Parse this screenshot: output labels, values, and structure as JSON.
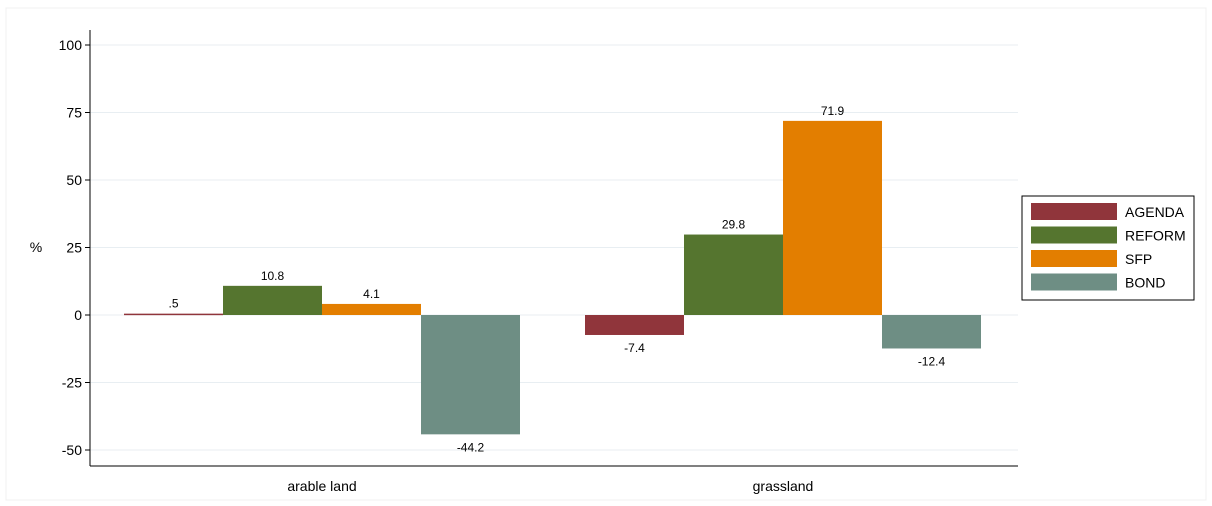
{
  "chart_data": {
    "type": "bar",
    "categories": [
      "arable land",
      "grassland"
    ],
    "series": [
      {
        "name": "AGENDA",
        "values": [
          0.5,
          -7.4
        ],
        "labels": [
          ".5",
          "-7.4"
        ],
        "color": "#90353b"
      },
      {
        "name": "REFORM",
        "values": [
          10.8,
          29.8
        ],
        "labels": [
          "10.8",
          "29.8"
        ],
        "color": "#55752f"
      },
      {
        "name": "SFP",
        "values": [
          4.1,
          71.9
        ],
        "labels": [
          "4.1",
          "71.9"
        ],
        "color": "#e37e00"
      },
      {
        "name": "BOND",
        "values": [
          -44.2,
          -12.4
        ],
        "labels": [
          "-44.2",
          "-12.4"
        ],
        "color": "#6e8e84"
      }
    ],
    "title": "",
    "xlabel": "",
    "ylabel": "%",
    "ylim": [
      -55,
      100
    ],
    "yticks": [
      -50,
      -25,
      0,
      25,
      50,
      75,
      100
    ],
    "grid": true,
    "legend_position": "right"
  }
}
